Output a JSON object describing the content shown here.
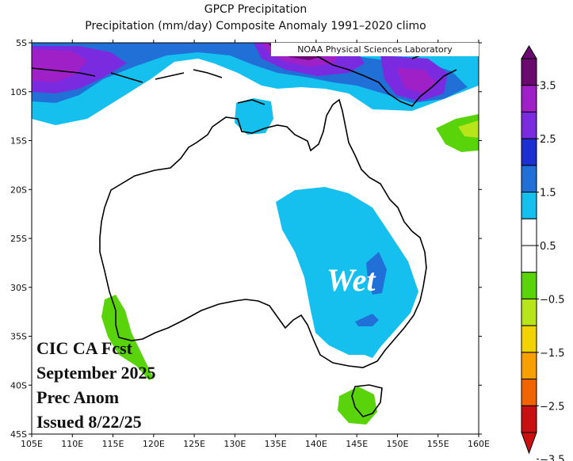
{
  "title_line1": "GPCP Precipitation",
  "title_line2": "Precipitation (mm/day) Composite Anomaly 1991–2020 climo",
  "credit": "NOAA Physical Sciences Laboratory",
  "forecast": {
    "line1": "CIC CA Fcst",
    "line2": "September 2025",
    "line3": "Prec Anom",
    "line4": "Issued 8/22/25"
  },
  "annotation": "Wet",
  "lat_labels": [
    "5S",
    "10S",
    "15S",
    "20S",
    "25S",
    "30S",
    "35S",
    "40S",
    "45S"
  ],
  "lon_labels": [
    "105E",
    "110E",
    "115E",
    "120E",
    "125E",
    "130E",
    "135E",
    "140E",
    "145E",
    "150E",
    "155E",
    "160E"
  ],
  "colorbar": {
    "labels": [
      "3.5",
      "2.5",
      "1.5",
      "0.5",
      "−0.5",
      "−1.5",
      "−2.5",
      "−3.5"
    ],
    "colors": [
      "#6a0a6e",
      "#a020c8",
      "#7a2be0",
      "#1c2fd0",
      "#2070d8",
      "#16c0ee",
      "#ffffff",
      "#ffffff",
      "#5ad40a",
      "#b8e41a",
      "#f2d200",
      "#f7a000",
      "#f26400",
      "#c81010"
    ]
  }
}
